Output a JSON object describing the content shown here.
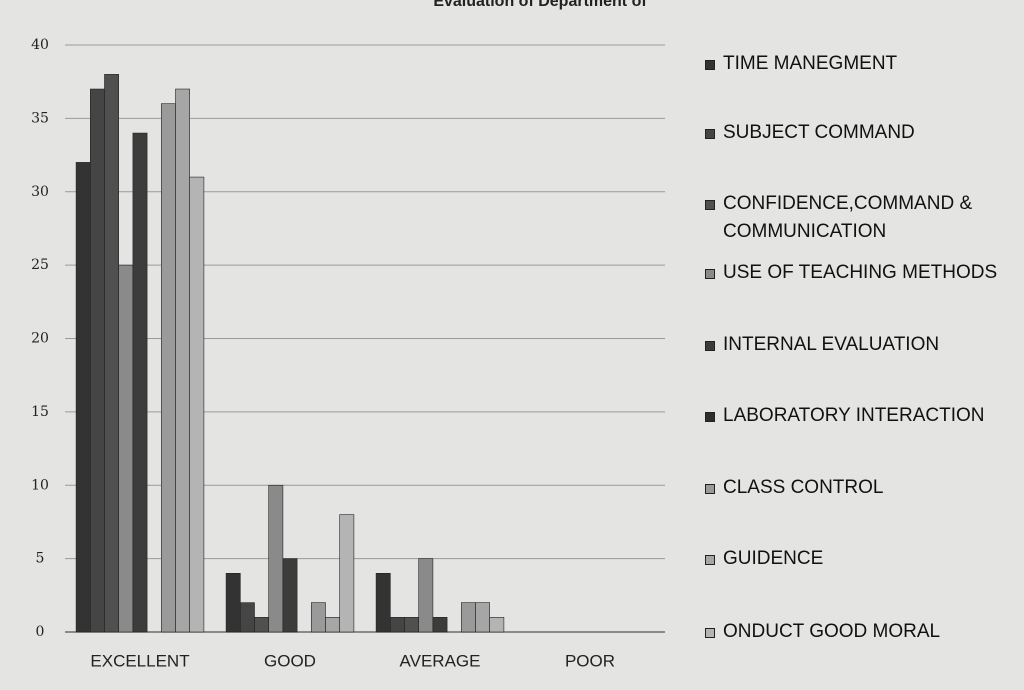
{
  "chart_data": {
    "type": "bar",
    "title": "Evaluation of Department of",
    "categories": [
      "EXCELLENT",
      "GOOD",
      "AVERAGE",
      "POOR"
    ],
    "series": [
      {
        "name": "TIME MANEGMENT",
        "color": "#333333",
        "values": [
          32,
          4,
          4,
          0
        ]
      },
      {
        "name": "SUBJECT COMMAND",
        "color": "#454545",
        "values": [
          37,
          2,
          1,
          0
        ]
      },
      {
        "name": "CONFIDENCE,COMMAND & COMMUNICATION",
        "color": "#505050",
        "values": [
          38,
          1,
          1,
          0
        ]
      },
      {
        "name": "USE OF TEACHING METHODS",
        "color": "#8a8a8a",
        "values": [
          25,
          10,
          5,
          0
        ]
      },
      {
        "name": "INTERNAL EVALUATION",
        "color": "#3c3c3c",
        "values": [
          34,
          5,
          1,
          0
        ]
      },
      {
        "name": "LABORATORY INTERACTION",
        "color": "#2e2e2e",
        "values": [
          0,
          0,
          0,
          0
        ]
      },
      {
        "name": "CLASS CONTROL",
        "color": "#9a9a9a",
        "values": [
          36,
          2,
          2,
          0
        ]
      },
      {
        "name": "GUIDENCE",
        "color": "#a6a6a6",
        "values": [
          37,
          1,
          2,
          0
        ]
      },
      {
        "name": "ONDUCT GOOD MORAL",
        "color": "#b4b4b4",
        "values": [
          31,
          8,
          1,
          0
        ]
      }
    ],
    "ylim": [
      0,
      40
    ],
    "yticks": [
      0,
      5,
      10,
      15,
      20,
      25,
      30,
      35,
      40
    ],
    "grid": true,
    "legend": "right"
  }
}
